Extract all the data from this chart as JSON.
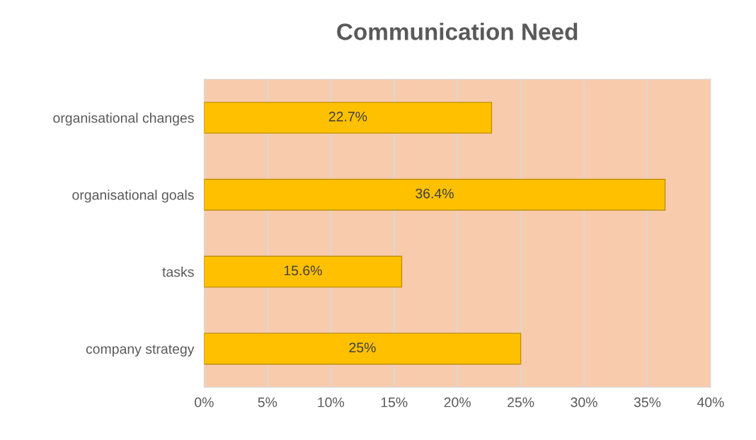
{
  "chart_data": {
    "type": "bar",
    "orientation": "horizontal",
    "title": "Communication Need",
    "categories": [
      "organisational changes",
      "organisational goals",
      "tasks",
      "company strategy"
    ],
    "values": [
      22.7,
      36.4,
      15.6,
      25
    ],
    "value_labels": [
      "22.7%",
      "36.4%",
      "15.6%",
      "25%"
    ],
    "color": "#ffc000",
    "xlim": [
      0,
      40
    ],
    "xticks": [
      {
        "value": 0,
        "label": "0%"
      },
      {
        "value": 5,
        "label": "5%"
      },
      {
        "value": 10,
        "label": "10%"
      },
      {
        "value": 15,
        "label": "15%"
      },
      {
        "value": 20,
        "label": "20%"
      },
      {
        "value": 25,
        "label": "25%"
      },
      {
        "value": 30,
        "label": "30%"
      },
      {
        "value": 35,
        "label": "35%"
      },
      {
        "value": 40,
        "label": "40%"
      }
    ],
    "grid": "x"
  }
}
